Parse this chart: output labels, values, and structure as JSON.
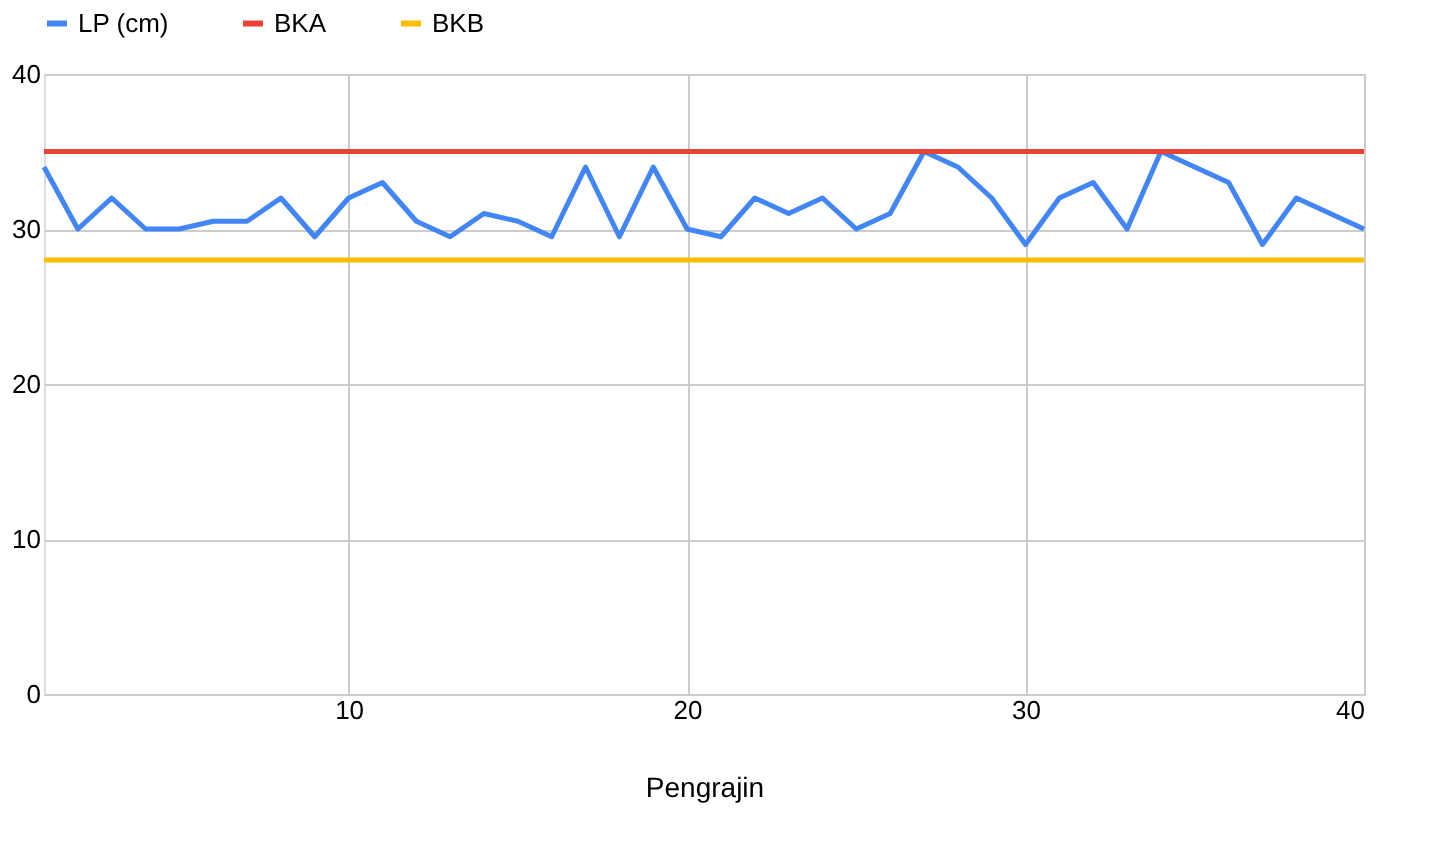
{
  "chart_data": {
    "type": "line",
    "xlabel": "Pengrajin",
    "x": [
      1,
      2,
      3,
      4,
      5,
      6,
      7,
      8,
      9,
      10,
      11,
      12,
      13,
      14,
      15,
      16,
      17,
      18,
      19,
      20,
      21,
      22,
      23,
      24,
      25,
      26,
      27,
      28,
      29,
      30,
      31,
      32,
      33,
      34,
      35,
      36,
      37,
      38,
      39,
      40
    ],
    "series": [
      {
        "name": "LP (cm)",
        "color": "#4285f4",
        "values": [
          34,
          30,
          32,
          30,
          30,
          30.5,
          30.5,
          32,
          29.5,
          32,
          33,
          30.5,
          29.5,
          31,
          30.5,
          29.5,
          34,
          29.5,
          34,
          30,
          29.5,
          32,
          31,
          32,
          30,
          31,
          35,
          34,
          32,
          29,
          32,
          33,
          30,
          35,
          34,
          33,
          29,
          32,
          31,
          30
        ]
      },
      {
        "name": "BKA",
        "color": "#ea4335",
        "values": [
          35,
          35,
          35,
          35,
          35,
          35,
          35,
          35,
          35,
          35,
          35,
          35,
          35,
          35,
          35,
          35,
          35,
          35,
          35,
          35,
          35,
          35,
          35,
          35,
          35,
          35,
          35,
          35,
          35,
          35,
          35,
          35,
          35,
          35,
          35,
          35,
          35,
          35,
          35,
          35
        ]
      },
      {
        "name": "BKB",
        "color": "#fbbc04",
        "values": [
          28,
          28,
          28,
          28,
          28,
          28,
          28,
          28,
          28,
          28,
          28,
          28,
          28,
          28,
          28,
          28,
          28,
          28,
          28,
          28,
          28,
          28,
          28,
          28,
          28,
          28,
          28,
          28,
          28,
          28,
          28,
          28,
          28,
          28,
          28,
          28,
          28,
          28,
          28,
          28
        ]
      }
    ],
    "xlim": [
      1,
      40
    ],
    "xticks": [
      10,
      20,
      30,
      40
    ],
    "ylim": [
      0,
      40
    ],
    "yticks": [
      0,
      10,
      20,
      30,
      40
    ],
    "grid": true,
    "legend": "top",
    "marker": "none",
    "line_style": "solid"
  }
}
